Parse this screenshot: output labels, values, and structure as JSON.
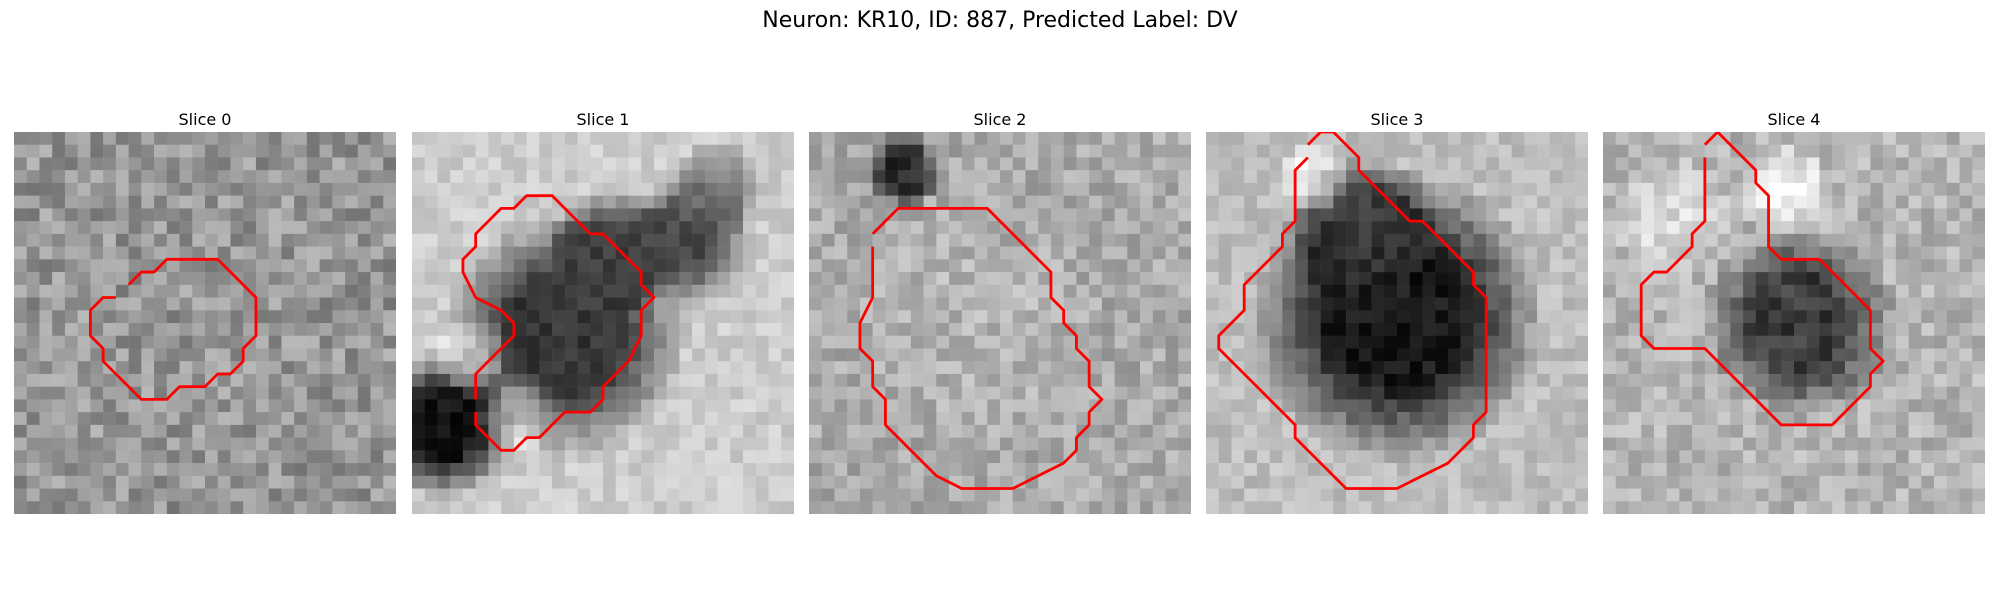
{
  "figure": {
    "title": "Neuron: KR10, ID: 887, Predicted Label: DV"
  },
  "contour_color": "#ff0000",
  "panels": [
    {
      "title": "Slice 0",
      "mean": 150,
      "contrast": 70,
      "seed": 11,
      "blobs": [],
      "contour": [
        [
          9,
          12
        ],
        [
          10,
          11
        ],
        [
          11,
          11
        ],
        [
          12,
          10
        ],
        [
          16,
          10
        ],
        [
          18,
          12
        ],
        [
          19,
          13
        ],
        [
          19,
          16
        ],
        [
          18,
          17
        ],
        [
          18,
          18
        ],
        [
          17,
          19
        ],
        [
          16,
          19
        ],
        [
          15,
          20
        ],
        [
          13,
          20
        ],
        [
          12,
          21
        ],
        [
          10,
          21
        ],
        [
          9,
          20
        ],
        [
          8,
          19
        ],
        [
          7,
          18
        ],
        [
          7,
          17
        ],
        [
          6,
          16
        ],
        [
          6,
          14
        ],
        [
          7,
          13
        ],
        [
          8,
          13
        ]
      ]
    },
    {
      "title": "Slice 1",
      "mean": 205,
      "contrast": 35,
      "seed": 23,
      "blobs": [
        {
          "cx": 11.5,
          "cy": 15.5,
          "r": 7.5,
          "v": 55
        },
        {
          "cx": 15,
          "cy": 9,
          "r": 4,
          "v": 70
        },
        {
          "cx": 21,
          "cy": 8,
          "r": 4,
          "v": 75
        },
        {
          "cx": 2,
          "cy": 22.5,
          "r": 4.5,
          "v": 20
        },
        {
          "cx": 23.5,
          "cy": 4,
          "r": 3,
          "v": 130
        },
        {
          "cx": 4,
          "cy": 17,
          "r": 2.5,
          "v": 245
        },
        {
          "cx": 8,
          "cy": 22,
          "r": 2.5,
          "v": 245
        }
      ],
      "contour": [
        [
          5,
          21
        ],
        [
          5,
          19
        ],
        [
          6,
          18
        ],
        [
          7,
          17
        ],
        [
          8,
          16
        ],
        [
          8,
          15
        ],
        [
          7,
          14
        ],
        [
          5,
          13
        ],
        [
          4,
          11
        ],
        [
          4,
          10
        ],
        [
          5,
          9
        ],
        [
          5,
          8
        ],
        [
          6,
          7
        ],
        [
          7,
          6
        ],
        [
          8,
          6
        ],
        [
          9,
          5
        ],
        [
          10,
          5
        ],
        [
          11,
          5
        ],
        [
          12,
          6
        ],
        [
          13,
          7
        ],
        [
          14,
          8
        ],
        [
          15,
          8
        ],
        [
          16,
          9
        ],
        [
          17,
          10
        ],
        [
          18,
          11
        ],
        [
          18,
          12
        ],
        [
          19,
          13
        ],
        [
          18,
          14
        ],
        [
          18,
          16
        ],
        [
          17,
          18
        ],
        [
          16,
          19
        ],
        [
          15,
          20
        ],
        [
          15,
          21
        ],
        [
          14,
          22
        ],
        [
          12,
          22
        ],
        [
          11,
          23
        ],
        [
          10,
          24
        ],
        [
          9,
          24
        ],
        [
          8,
          25
        ],
        [
          7,
          25
        ],
        [
          6,
          24
        ],
        [
          5,
          23
        ],
        [
          5,
          22
        ]
      ]
    },
    {
      "title": "Slice 2",
      "mean": 170,
      "contrast": 55,
      "seed": 37,
      "blobs": [
        {
          "cx": 7,
          "cy": 2.5,
          "r": 2.5,
          "v": 40
        },
        {
          "cx": 12.5,
          "cy": 14.5,
          "r": 8,
          "v": 180
        }
      ],
      "contour": [
        [
          5,
          8
        ],
        [
          6,
          7
        ],
        [
          7,
          6
        ],
        [
          8,
          6
        ],
        [
          9,
          6
        ],
        [
          10,
          6
        ],
        [
          11,
          6
        ],
        [
          12,
          6
        ],
        [
          13,
          6
        ],
        [
          14,
          6
        ],
        [
          15,
          7
        ],
        [
          16,
          8
        ],
        [
          17,
          9
        ],
        [
          18,
          10
        ],
        [
          19,
          11
        ],
        [
          19,
          13
        ],
        [
          20,
          14
        ],
        [
          20,
          15
        ],
        [
          21,
          16
        ],
        [
          21,
          17
        ],
        [
          22,
          18
        ],
        [
          22,
          20
        ],
        [
          23,
          21
        ],
        [
          22,
          22
        ],
        [
          22,
          23
        ],
        [
          21,
          24
        ],
        [
          21,
          25
        ],
        [
          20,
          26
        ],
        [
          18,
          27
        ],
        [
          16,
          28
        ],
        [
          14,
          28
        ],
        [
          12,
          28
        ],
        [
          10,
          27
        ],
        [
          9,
          26
        ],
        [
          8,
          25
        ],
        [
          7,
          24
        ],
        [
          6,
          23
        ],
        [
          6,
          21
        ],
        [
          5,
          20
        ],
        [
          5,
          18
        ],
        [
          4,
          17
        ],
        [
          4,
          15
        ],
        [
          5,
          13
        ],
        [
          5,
          11
        ],
        [
          5,
          10
        ],
        [
          5,
          9
        ]
      ]
    },
    {
      "title": "Slice 3",
      "mean": 190,
      "contrast": 40,
      "seed": 53,
      "blobs": [
        {
          "cx": 14.5,
          "cy": 14,
          "r": 9,
          "v": 25
        },
        {
          "cx": 11.5,
          "cy": 7,
          "r": 4.5,
          "v": 70
        },
        {
          "cx": 8,
          "cy": 3,
          "r": 2.5,
          "v": 240
        }
      ],
      "contour": [
        [
          8,
          1
        ],
        [
          9,
          0
        ],
        [
          10,
          0
        ],
        [
          11,
          1
        ],
        [
          12,
          2
        ],
        [
          12,
          3
        ],
        [
          13,
          4
        ],
        [
          14,
          5
        ],
        [
          15,
          6
        ],
        [
          16,
          7
        ],
        [
          17,
          7
        ],
        [
          18,
          8
        ],
        [
          19,
          9
        ],
        [
          20,
          10
        ],
        [
          21,
          11
        ],
        [
          21,
          12
        ],
        [
          22,
          13
        ],
        [
          22,
          14
        ],
        [
          22,
          15
        ],
        [
          22,
          16
        ],
        [
          22,
          17
        ],
        [
          22,
          18
        ],
        [
          22,
          19
        ],
        [
          22,
          20
        ],
        [
          22,
          21
        ],
        [
          22,
          22
        ],
        [
          21,
          23
        ],
        [
          21,
          24
        ],
        [
          20,
          25
        ],
        [
          19,
          26
        ],
        [
          17,
          27
        ],
        [
          15,
          28
        ],
        [
          13,
          28
        ],
        [
          11,
          28
        ],
        [
          10,
          27
        ],
        [
          9,
          26
        ],
        [
          8,
          25
        ],
        [
          7,
          24
        ],
        [
          7,
          23
        ],
        [
          6,
          22
        ],
        [
          5,
          21
        ],
        [
          4,
          20
        ],
        [
          3,
          19
        ],
        [
          2,
          18
        ],
        [
          1,
          17
        ],
        [
          1,
          16
        ],
        [
          2,
          15
        ],
        [
          3,
          14
        ],
        [
          3,
          13
        ],
        [
          3,
          12
        ],
        [
          4,
          11
        ],
        [
          5,
          10
        ],
        [
          6,
          9
        ],
        [
          6,
          8
        ],
        [
          7,
          7
        ],
        [
          7,
          6
        ],
        [
          7,
          5
        ],
        [
          7,
          4
        ],
        [
          7,
          3
        ],
        [
          8,
          2
        ]
      ]
    },
    {
      "title": "Slice 4",
      "mean": 180,
      "contrast": 55,
      "seed": 71,
      "blobs": [
        {
          "cx": 15,
          "cy": 14.5,
          "r": 6,
          "v": 60
        },
        {
          "cx": 5,
          "cy": 6,
          "r": 4,
          "v": 220
        },
        {
          "cx": 14,
          "cy": 4,
          "r": 3,
          "v": 235
        }
      ],
      "contour": [
        [
          8,
          1
        ],
        [
          9,
          0
        ],
        [
          10,
          1
        ],
        [
          11,
          2
        ],
        [
          12,
          3
        ],
        [
          12,
          4
        ],
        [
          13,
          5
        ],
        [
          13,
          6
        ],
        [
          13,
          7
        ],
        [
          13,
          8
        ],
        [
          13,
          9
        ],
        [
          14,
          10
        ],
        [
          15,
          10
        ],
        [
          16,
          10
        ],
        [
          17,
          10
        ],
        [
          18,
          11
        ],
        [
          19,
          12
        ],
        [
          20,
          13
        ],
        [
          21,
          14
        ],
        [
          21,
          15
        ],
        [
          21,
          16
        ],
        [
          21,
          17
        ],
        [
          22,
          18
        ],
        [
          21,
          19
        ],
        [
          21,
          20
        ],
        [
          20,
          21
        ],
        [
          19,
          22
        ],
        [
          18,
          23
        ],
        [
          17,
          23
        ],
        [
          16,
          23
        ],
        [
          15,
          23
        ],
        [
          14,
          23
        ],
        [
          13,
          22
        ],
        [
          12,
          21
        ],
        [
          11,
          20
        ],
        [
          10,
          19
        ],
        [
          9,
          18
        ],
        [
          8,
          17
        ],
        [
          7,
          17
        ],
        [
          6,
          17
        ],
        [
          5,
          17
        ],
        [
          4,
          17
        ],
        [
          3,
          16
        ],
        [
          3,
          15
        ],
        [
          3,
          14
        ],
        [
          3,
          13
        ],
        [
          3,
          12
        ],
        [
          4,
          11
        ],
        [
          5,
          11
        ],
        [
          6,
          10
        ],
        [
          7,
          9
        ],
        [
          7,
          8
        ],
        [
          8,
          7
        ],
        [
          8,
          6
        ],
        [
          8,
          5
        ],
        [
          8,
          4
        ],
        [
          8,
          3
        ],
        [
          8,
          2
        ]
      ]
    }
  ]
}
